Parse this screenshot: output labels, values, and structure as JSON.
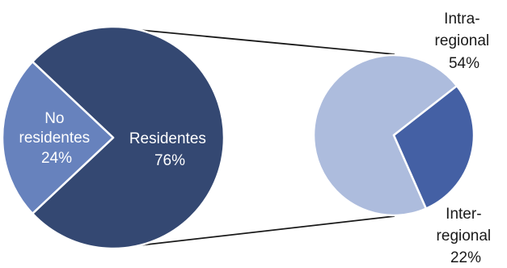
{
  "colors": {
    "residentes": "#344872",
    "no_residentes": "#6782bd",
    "intra": "#adbcdd",
    "inter": "#4460a4",
    "connector": "#1a1a1a",
    "slice_border": "#ffffff"
  },
  "chart_data": {
    "type": "pie",
    "title": "",
    "charts": [
      {
        "name": "main",
        "slices": [
          {
            "key": "residentes",
            "line1": "Residentes",
            "line2": "76%",
            "value": 76
          },
          {
            "key": "no_residentes",
            "line1": "No",
            "line2": "residentes",
            "line3": "24%",
            "value": 24
          }
        ]
      },
      {
        "name": "breakdown",
        "slices": [
          {
            "key": "intra",
            "line1": "Intra-",
            "line2": "regional",
            "line3": "54%",
            "value": 54
          },
          {
            "key": "inter",
            "line1": "Inter-",
            "line2": "regional",
            "line3": "22%",
            "value": 22
          }
        ]
      }
    ]
  }
}
